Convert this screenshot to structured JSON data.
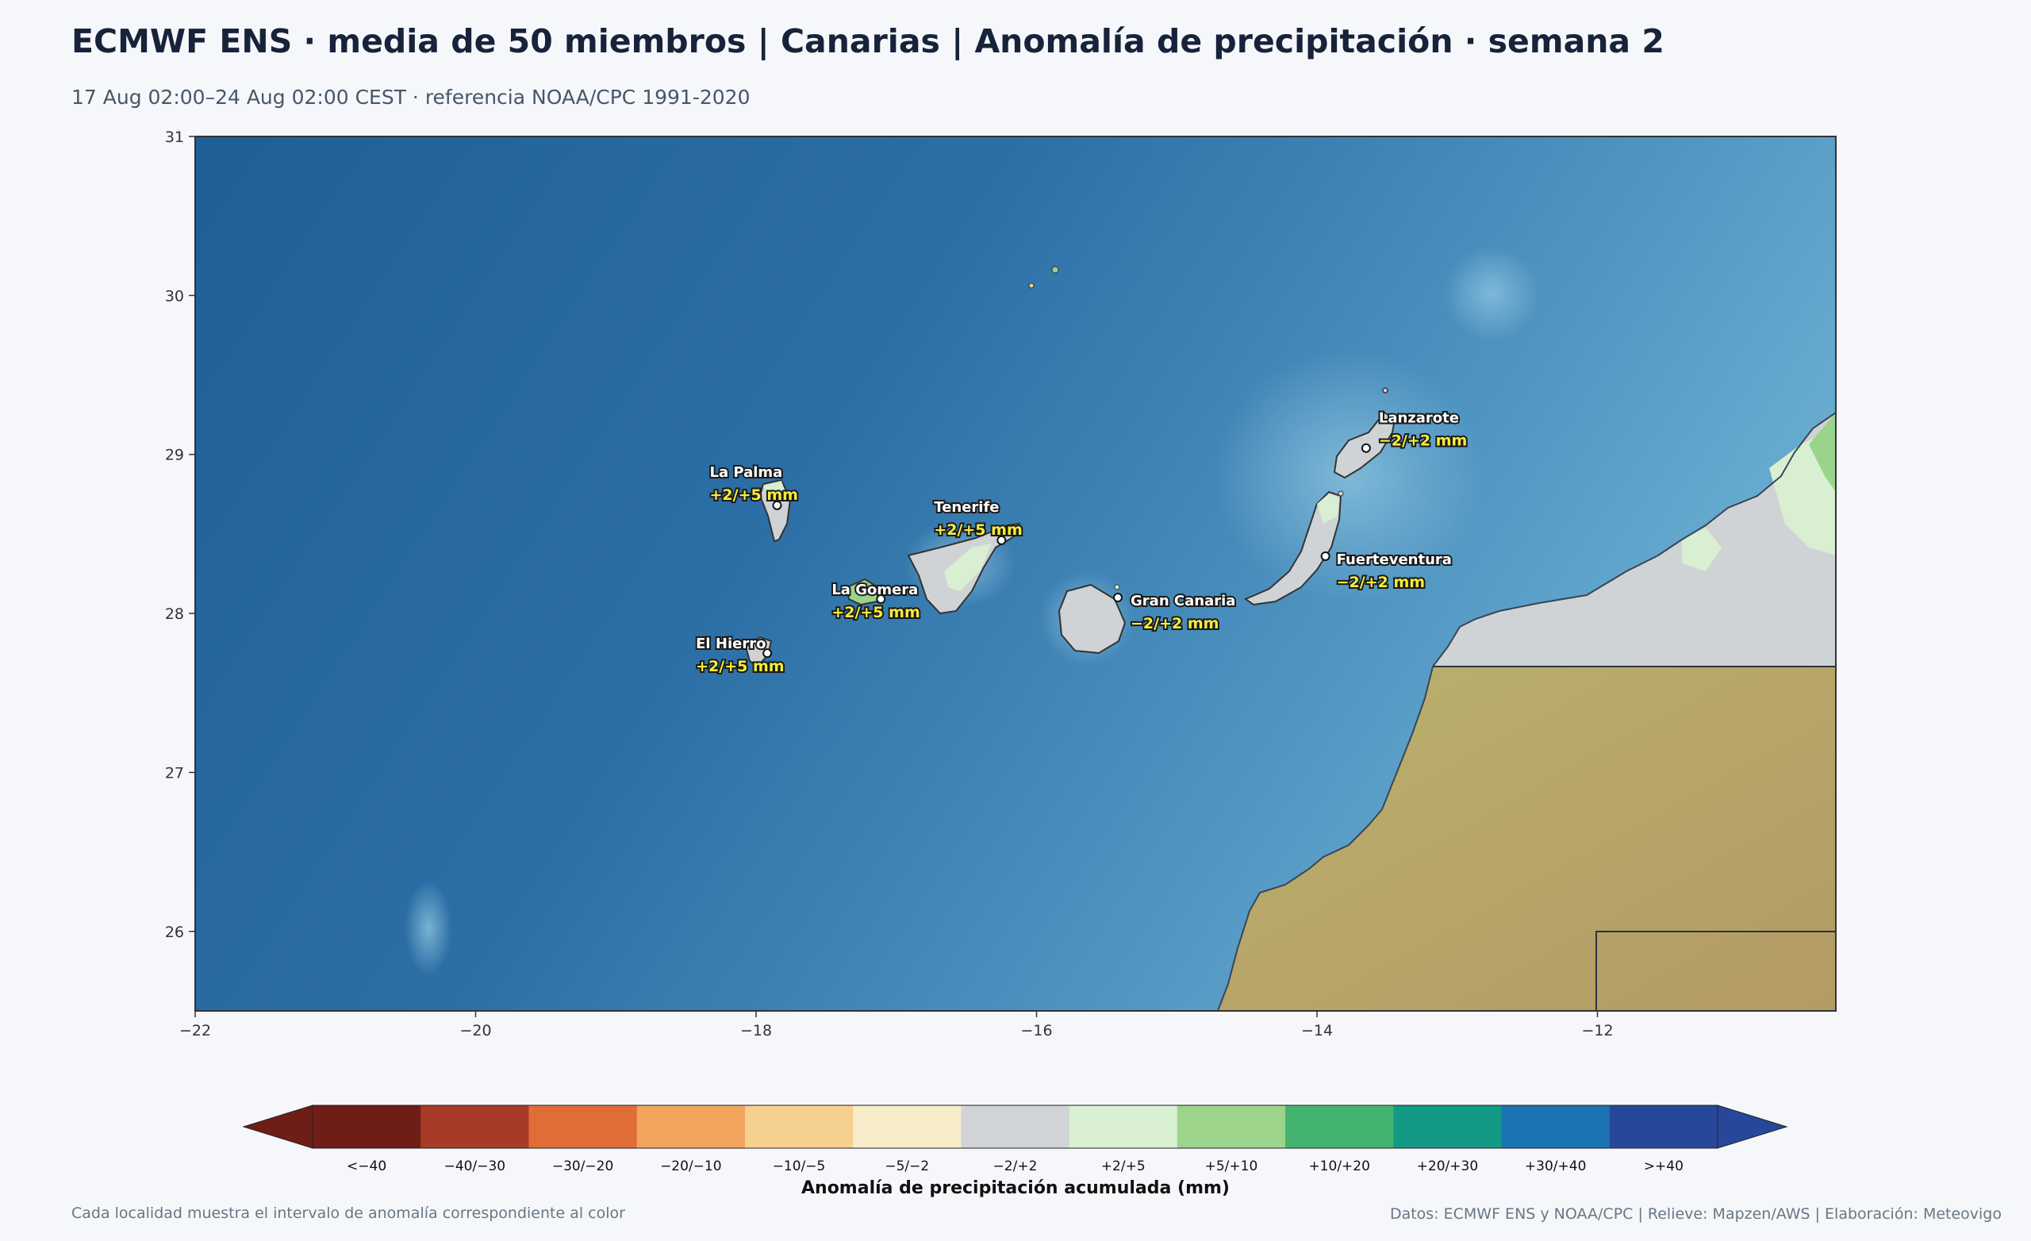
{
  "header": {
    "title": "ECMWF ENS · media de 50 miembros | Canarias | Anomalía de precipitación · semana 2",
    "subtitle": "17 Aug 02:00–24 Aug 02:00 CEST · referencia NOAA/CPC 1991-2020"
  },
  "map": {
    "lon_range": [
      -22,
      -10.3
    ],
    "lat_range": [
      25.5,
      31
    ],
    "lon_ticks": [
      "−22",
      "−20",
      "−18",
      "−16",
      "−14",
      "−12"
    ],
    "lon_tick_values": [
      -22,
      -20,
      -18,
      -16,
      -14,
      -12
    ],
    "lat_ticks": [
      "31",
      "30",
      "29",
      "28",
      "27",
      "26"
    ],
    "lat_tick_values": [
      31,
      30,
      29,
      28,
      27,
      26
    ],
    "locations": [
      {
        "name": "La Palma",
        "value": "+2/+5 mm",
        "lon": -17.85,
        "lat": 28.68
      },
      {
        "name": "Tenerife",
        "value": "+2/+5 mm",
        "lon": -16.25,
        "lat": 28.46
      },
      {
        "name": "La Gomera",
        "value": "+2/+5 mm",
        "lon": -17.11,
        "lat": 28.09
      },
      {
        "name": "El Hierro",
        "value": "+2/+5 mm",
        "lon": -17.92,
        "lat": 27.75
      },
      {
        "name": "Gran Canaria",
        "value": "−2/+2 mm",
        "lon": -15.42,
        "lat": 28.1
      },
      {
        "name": "Fuerteventura",
        "value": "−2/+2 mm",
        "lon": -13.94,
        "lat": 28.36
      },
      {
        "name": "Lanzarote",
        "value": "−2/+2 mm",
        "lon": -13.65,
        "lat": 29.04
      }
    ],
    "colors": {
      "ocean_deep": "#1f5f97",
      "ocean_shallow": "#68add0",
      "anomaly_neutral": "#cfd3d6",
      "anomaly_light_wet": "#d8efd2",
      "anomaly_wet": "#9ad48b",
      "desert": "#b8a56c"
    }
  },
  "colorbar": {
    "title": "Anomalía de precipitación acumulada (mm)",
    "labels": [
      "<−40",
      "−40/−30",
      "−30/−20",
      "−20/−10",
      "−10/−5",
      "−5/−2",
      "−2/+2",
      "+2/+5",
      "+5/+10",
      "+10/+20",
      "+20/+30",
      "+30/+40",
      ">+40"
    ],
    "colors": [
      "#6e1e17",
      "#a83a28",
      "#e06c38",
      "#f2a55c",
      "#f6d08f",
      "#f7edca",
      "#d0d4d6",
      "#d9f0d3",
      "#9bd48a",
      "#43b470",
      "#149985",
      "#1b73b3",
      "#27489a"
    ]
  },
  "footer": {
    "left": "Cada localidad muestra el intervalo de anomalía correspondiente al color",
    "right": "Datos: ECMWF ENS y NOAA/CPC | Relieve: Mapzen/AWS | Elaboración: Meteovigo"
  }
}
